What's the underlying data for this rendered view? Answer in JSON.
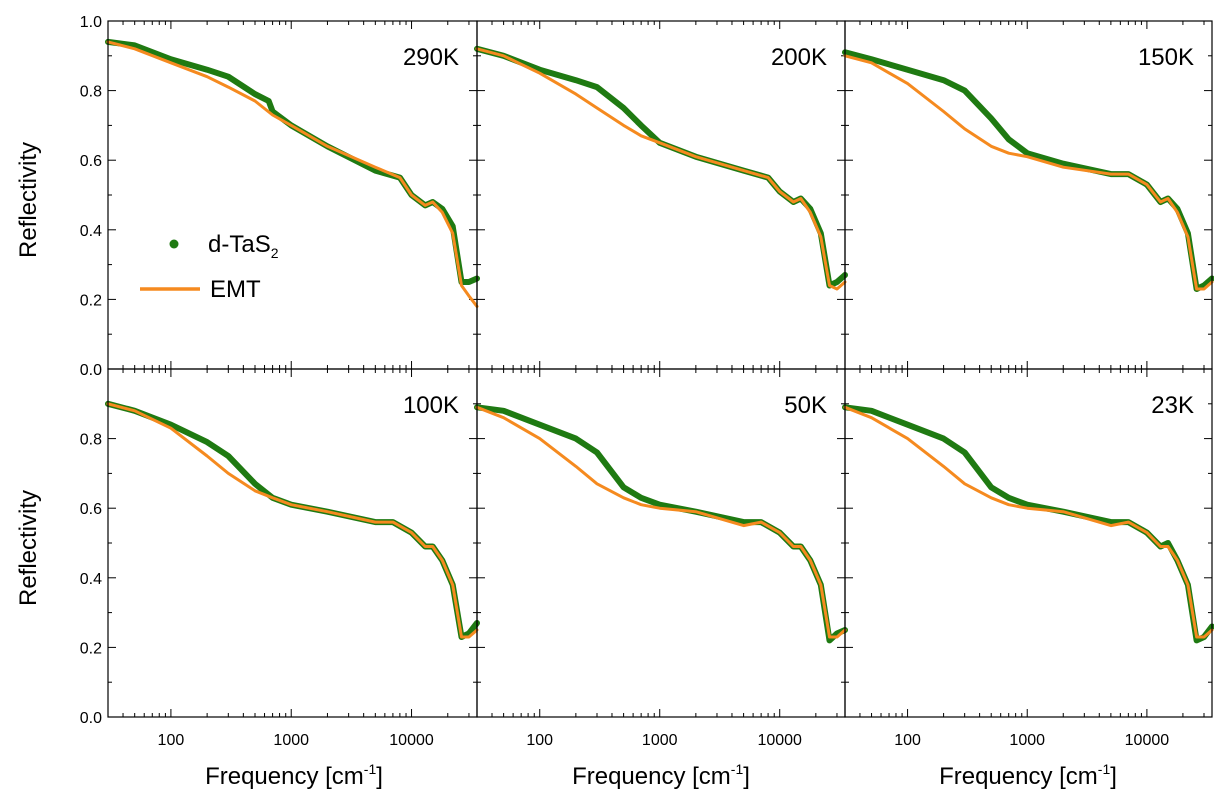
{
  "figure": {
    "ylabel": "Reflectivity",
    "xlabel_main": "Frequency [cm",
    "xlabel_sup": "-1",
    "xlabel_end": "]",
    "legend": {
      "data_label_main": "d-TaS",
      "data_label_sub": "2",
      "fit_label": "EMT"
    },
    "x_tick_labels": [
      "100",
      "1000",
      "10000"
    ],
    "y_tick_labels": [
      "0.0",
      "0.2",
      "0.4",
      "0.6",
      "0.8",
      "1.0"
    ]
  },
  "colors": {
    "data": "#1f7a12",
    "fit": "#f58a1f",
    "axes": "#000000"
  },
  "chart_data": [
    {
      "type": "line",
      "panel_label": "290K",
      "xscale": "log",
      "xlim": [
        30,
        35000
      ],
      "ylim": [
        0.0,
        1.0
      ],
      "legend_placement": "left-middle",
      "series": [
        {
          "name": "d-TaS2",
          "x": [
            30,
            50,
            100,
            200,
            300,
            500,
            650,
            700,
            1000,
            2000,
            5000,
            8000,
            10000,
            13000,
            15000,
            18000,
            22000,
            26000,
            30000,
            35000
          ],
          "y": [
            0.94,
            0.93,
            0.89,
            0.86,
            0.84,
            0.79,
            0.77,
            0.74,
            0.7,
            0.64,
            0.57,
            0.55,
            0.5,
            0.47,
            0.48,
            0.46,
            0.41,
            0.25,
            0.25,
            0.26
          ]
        },
        {
          "name": "EMT",
          "x": [
            30,
            50,
            100,
            200,
            300,
            500,
            700,
            1000,
            2000,
            5000,
            8000,
            10000,
            13000,
            15000,
            18000,
            22000,
            26000,
            30000,
            35000
          ],
          "y": [
            0.94,
            0.92,
            0.88,
            0.84,
            0.81,
            0.77,
            0.73,
            0.7,
            0.64,
            0.58,
            0.55,
            0.5,
            0.47,
            0.48,
            0.45,
            0.39,
            0.24,
            0.21,
            0.18
          ]
        }
      ]
    },
    {
      "type": "line",
      "panel_label": "200K",
      "xscale": "log",
      "xlim": [
        30,
        35000
      ],
      "ylim": [
        0.0,
        1.0
      ],
      "series": [
        {
          "name": "d-TaS2",
          "x": [
            30,
            50,
            100,
            200,
            300,
            500,
            700,
            1000,
            2000,
            5000,
            8000,
            10000,
            13000,
            15000,
            18000,
            22000,
            26000,
            30000,
            35000
          ],
          "y": [
            0.92,
            0.9,
            0.86,
            0.83,
            0.81,
            0.75,
            0.7,
            0.65,
            0.61,
            0.57,
            0.55,
            0.51,
            0.48,
            0.49,
            0.46,
            0.39,
            0.24,
            0.25,
            0.27
          ]
        },
        {
          "name": "EMT",
          "x": [
            30,
            50,
            100,
            200,
            300,
            500,
            700,
            1000,
            2000,
            5000,
            8000,
            10000,
            13000,
            15000,
            18000,
            22000,
            26000,
            30000,
            35000
          ],
          "y": [
            0.92,
            0.9,
            0.85,
            0.79,
            0.75,
            0.7,
            0.67,
            0.65,
            0.61,
            0.57,
            0.55,
            0.51,
            0.48,
            0.49,
            0.45,
            0.38,
            0.24,
            0.23,
            0.25
          ]
        }
      ]
    },
    {
      "type": "line",
      "panel_label": "150K",
      "xscale": "log",
      "xlim": [
        30,
        35000
      ],
      "ylim": [
        0.0,
        1.0
      ],
      "series": [
        {
          "name": "d-TaS2",
          "x": [
            30,
            50,
            100,
            200,
            300,
            500,
            700,
            1000,
            2000,
            5000,
            7000,
            10000,
            13000,
            15000,
            18000,
            22000,
            26000,
            30000,
            35000
          ],
          "y": [
            0.91,
            0.89,
            0.86,
            0.83,
            0.8,
            0.72,
            0.66,
            0.62,
            0.59,
            0.56,
            0.56,
            0.53,
            0.48,
            0.49,
            0.46,
            0.39,
            0.23,
            0.24,
            0.26
          ]
        },
        {
          "name": "EMT",
          "x": [
            30,
            50,
            100,
            200,
            300,
            500,
            700,
            1000,
            2000,
            5000,
            7000,
            10000,
            13000,
            15000,
            18000,
            22000,
            26000,
            30000,
            35000
          ],
          "y": [
            0.9,
            0.88,
            0.82,
            0.74,
            0.69,
            0.64,
            0.62,
            0.61,
            0.58,
            0.56,
            0.56,
            0.53,
            0.48,
            0.49,
            0.45,
            0.38,
            0.23,
            0.23,
            0.25
          ]
        }
      ]
    },
    {
      "type": "line",
      "panel_label": "100K",
      "xscale": "log",
      "xlim": [
        30,
        35000
      ],
      "ylim": [
        0.0,
        0.95
      ],
      "series": [
        {
          "name": "d-TaS2",
          "x": [
            30,
            50,
            100,
            200,
            300,
            500,
            700,
            1000,
            2000,
            5000,
            7000,
            10000,
            13000,
            15000,
            18000,
            22000,
            26000,
            30000,
            35000
          ],
          "y": [
            0.9,
            0.88,
            0.84,
            0.79,
            0.75,
            0.67,
            0.63,
            0.61,
            0.59,
            0.56,
            0.56,
            0.53,
            0.49,
            0.49,
            0.45,
            0.38,
            0.23,
            0.24,
            0.27
          ]
        },
        {
          "name": "EMT",
          "x": [
            30,
            50,
            100,
            200,
            300,
            500,
            700,
            1000,
            2000,
            5000,
            7000,
            10000,
            13000,
            15000,
            18000,
            22000,
            26000,
            30000,
            35000
          ],
          "y": [
            0.9,
            0.88,
            0.83,
            0.75,
            0.7,
            0.65,
            0.63,
            0.61,
            0.59,
            0.56,
            0.56,
            0.53,
            0.49,
            0.49,
            0.45,
            0.38,
            0.23,
            0.23,
            0.25
          ]
        }
      ]
    },
    {
      "type": "line",
      "panel_label": "50K",
      "xscale": "log",
      "xlim": [
        30,
        35000
      ],
      "ylim": [
        0.0,
        0.95
      ],
      "series": [
        {
          "name": "d-TaS2",
          "x": [
            30,
            50,
            100,
            200,
            300,
            500,
            700,
            1000,
            2000,
            5000,
            7000,
            10000,
            13000,
            15000,
            18000,
            22000,
            26000,
            30000,
            35000
          ],
          "y": [
            0.89,
            0.88,
            0.84,
            0.8,
            0.76,
            0.66,
            0.63,
            0.61,
            0.59,
            0.56,
            0.56,
            0.53,
            0.49,
            0.49,
            0.45,
            0.38,
            0.22,
            0.24,
            0.25
          ]
        },
        {
          "name": "EMT",
          "x": [
            30,
            50,
            100,
            200,
            300,
            500,
            700,
            1000,
            2000,
            5000,
            7000,
            10000,
            13000,
            15000,
            18000,
            22000,
            26000,
            30000,
            35000
          ],
          "y": [
            0.89,
            0.86,
            0.8,
            0.72,
            0.67,
            0.63,
            0.61,
            0.6,
            0.59,
            0.55,
            0.56,
            0.53,
            0.49,
            0.49,
            0.45,
            0.38,
            0.23,
            0.23,
            0.25
          ]
        }
      ]
    },
    {
      "type": "line",
      "panel_label": "23K",
      "xscale": "log",
      "xlim": [
        30,
        35000
      ],
      "ylim": [
        0.0,
        0.95
      ],
      "series": [
        {
          "name": "d-TaS2",
          "x": [
            30,
            50,
            100,
            200,
            300,
            500,
            700,
            1000,
            2000,
            5000,
            7000,
            10000,
            13000,
            15000,
            18000,
            22000,
            26000,
            30000,
            35000
          ],
          "y": [
            0.89,
            0.88,
            0.84,
            0.8,
            0.76,
            0.66,
            0.63,
            0.61,
            0.59,
            0.56,
            0.56,
            0.53,
            0.49,
            0.5,
            0.45,
            0.38,
            0.22,
            0.23,
            0.26
          ]
        },
        {
          "name": "EMT",
          "x": [
            30,
            50,
            100,
            200,
            300,
            500,
            700,
            1000,
            2000,
            5000,
            7000,
            10000,
            13000,
            15000,
            18000,
            22000,
            26000,
            30000,
            35000
          ],
          "y": [
            0.89,
            0.86,
            0.8,
            0.72,
            0.67,
            0.63,
            0.61,
            0.6,
            0.59,
            0.55,
            0.56,
            0.53,
            0.49,
            0.49,
            0.45,
            0.38,
            0.23,
            0.23,
            0.25
          ]
        }
      ]
    }
  ]
}
